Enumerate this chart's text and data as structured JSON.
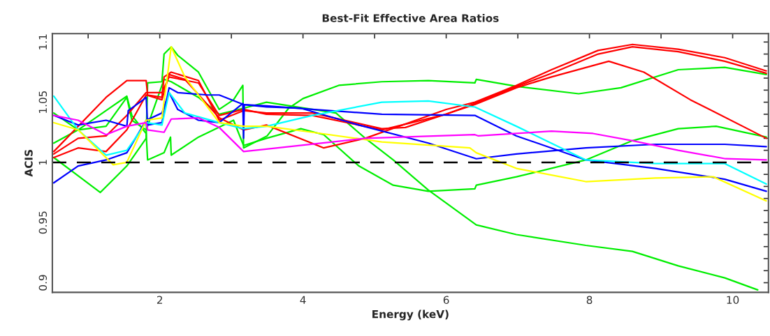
{
  "chart_data": {
    "type": "line",
    "title": "Best-Fit Effective Area Ratios",
    "xlabel": "Energy (keV)",
    "ylabel": "ACIS",
    "xlim": [
      0.5,
      10.5
    ],
    "ylim": [
      0.892,
      1.107
    ],
    "xticks": [
      {
        "value": 1,
        "label": null
      },
      2,
      {
        "value": 3,
        "label": null
      },
      4,
      {
        "value": 5,
        "label": null
      },
      6,
      {
        "value": 7,
        "label": null
      },
      8,
      {
        "value": 9,
        "label": null
      },
      10
    ],
    "yticks": [
      0.9,
      {
        "value": 0.91,
        "label": null
      },
      {
        "value": 0.92,
        "label": null
      },
      {
        "value": 0.93,
        "label": null
      },
      {
        "value": 0.94,
        "label": null
      },
      0.95,
      {
        "value": 0.96,
        "label": null
      },
      {
        "value": 0.97,
        "label": null
      },
      {
        "value": 0.98,
        "label": null
      },
      {
        "value": 0.99,
        "label": null
      },
      1,
      {
        "value": 1.01,
        "label": null
      },
      {
        "value": 1.02,
        "label": null
      },
      {
        "value": 1.03,
        "label": null
      },
      {
        "value": 1.04,
        "label": null
      },
      1.05,
      {
        "value": 1.06,
        "label": null
      },
      {
        "value": 1.07,
        "label": null
      },
      {
        "value": 1.08,
        "label": null
      },
      {
        "value": 1.09,
        "label": null
      },
      1.1
    ],
    "grid": false,
    "marker": "none",
    "line_style": "solid",
    "ref_lines": [
      {
        "axis": "y",
        "value": 1,
        "color": "#000000",
        "line_style": "dashed"
      }
    ],
    "series": [
      {
        "color": "#00ee00",
        "x": [
          0.52,
          1.17,
          1.54,
          1.81,
          1.83,
          2.03,
          2.06,
          2.16,
          2.25,
          2.54,
          2.83,
          3.03,
          3.16,
          3.17,
          3.5,
          3.8,
          4.0,
          4.5,
          5.1,
          5.75,
          6.4,
          6.42,
          7.0,
          7.85,
          8.44,
          9.24,
          9.89,
          10.47
        ],
        "values": [
          1.004,
          0.975,
          0.997,
          1.02,
          1.066,
          1.067,
          1.09,
          1.096,
          1.089,
          1.075,
          1.044,
          1.052,
          1.064,
          1.012,
          1.022,
          1.045,
          1.053,
          1.064,
          1.067,
          1.068,
          1.066,
          1.069,
          1.063,
          1.057,
          1.062,
          1.077,
          1.079,
          1.073
        ]
      },
      {
        "color": "#00ee00",
        "x": [
          0.52,
          0.86,
          1.25,
          1.54,
          1.61,
          1.81,
          1.83,
          2.06,
          2.15,
          2.16,
          2.54,
          3.03,
          3.17,
          3.49,
          3.97,
          4.29,
          4.78,
          5.26,
          5.75,
          6.4,
          6.42,
          6.98,
          7.95,
          8.6,
          9.24,
          9.77,
          10.47
        ],
        "values": [
          1.016,
          1.027,
          1.043,
          1.055,
          1.039,
          1.024,
          1.002,
          1.008,
          1.021,
          1.006,
          1.021,
          1.035,
          1.014,
          1.02,
          1.028,
          1.023,
          0.997,
          0.981,
          0.976,
          0.978,
          0.981,
          0.988,
          1.002,
          1.018,
          1.028,
          1.03,
          1.021
        ]
      },
      {
        "color": "#00ee00",
        "x": [
          0.52,
          0.86,
          1.25,
          1.54,
          1.61,
          1.81,
          2.06,
          2.16,
          2.54,
          2.83,
          3.17,
          3.49,
          4.46,
          4.87,
          5.26,
          5.75,
          6.42,
          6.98,
          7.95,
          8.6,
          9.24,
          9.89,
          10.35
        ],
        "values": [
          1.041,
          1.027,
          1.03,
          1.054,
          1.035,
          1.027,
          1.069,
          1.067,
          1.054,
          1.04,
          1.045,
          1.05,
          1.041,
          1.02,
          1.002,
          0.977,
          0.948,
          0.94,
          0.931,
          0.926,
          0.914,
          0.904,
          0.894
        ]
      },
      {
        "color": "#ff0000",
        "x": [
          0.52,
          1.25,
          1.54,
          1.81,
          1.83,
          2.03,
          2.06,
          2.16,
          2.54,
          2.83,
          3.17,
          3.49,
          4.13,
          5.1,
          5.43,
          6.4,
          6.98,
          7.47,
          8.27,
          8.76,
          9.41,
          10.47
        ],
        "values": [
          1.009,
          1.054,
          1.068,
          1.068,
          1.056,
          1.054,
          1.071,
          1.075,
          1.068,
          1.035,
          1.043,
          1.041,
          1.041,
          1.028,
          1.029,
          1.048,
          1.062,
          1.071,
          1.084,
          1.075,
          1.052,
          1.02
        ]
      },
      {
        "color": "#ff0000",
        "x": [
          0.52,
          0.86,
          1.25,
          1.54,
          1.81,
          2.03,
          2.13,
          2.35,
          2.83,
          3.17,
          3.49,
          4.29,
          4.87,
          6.0,
          6.4,
          6.98,
          7.47,
          8.12,
          8.6,
          9.24,
          9.89,
          10.47
        ],
        "values": [
          1.004,
          1.012,
          1.009,
          1.027,
          1.056,
          1.052,
          1.073,
          1.069,
          1.037,
          1.027,
          1.031,
          1.012,
          1.02,
          1.044,
          1.05,
          1.064,
          1.077,
          1.093,
          1.098,
          1.094,
          1.087,
          1.076
        ]
      },
      {
        "color": "#ff0000",
        "x": [
          0.52,
          0.86,
          1.25,
          1.54,
          1.81,
          2.03,
          2.13,
          2.54,
          2.83,
          3.17,
          3.49,
          4.13,
          5.1,
          6.0,
          6.4,
          6.98,
          7.47,
          8.12,
          8.6,
          9.24,
          9.89,
          10.47
        ],
        "values": [
          1.007,
          1.02,
          1.022,
          1.039,
          1.058,
          1.058,
          1.071,
          1.066,
          1.039,
          1.044,
          1.04,
          1.039,
          1.027,
          1.04,
          1.049,
          1.063,
          1.074,
          1.09,
          1.096,
          1.092,
          1.084,
          1.074
        ]
      },
      {
        "color": "#0000ff",
        "x": [
          0.52,
          0.86,
          1.25,
          1.54,
          1.56,
          1.77,
          1.81,
          1.83,
          2.03,
          2.13,
          2.25,
          2.67,
          2.83,
          3.17,
          3.49,
          4.13,
          5.1,
          6.4,
          6.98,
          7.95,
          8.92,
          9.89,
          10.47
        ],
        "values": [
          1.039,
          1.031,
          1.035,
          1.03,
          1.043,
          1.052,
          1.054,
          1.031,
          1.033,
          1.062,
          1.058,
          1.056,
          1.056,
          1.048,
          1.047,
          1.044,
          1.04,
          1.039,
          1.022,
          1.002,
          0.995,
          0.986,
          0.976
        ]
      },
      {
        "color": "#0000ff",
        "x": [
          0.52,
          0.86,
          1.25,
          1.54,
          1.81,
          2.03,
          2.13,
          2.25,
          2.54,
          2.83,
          3.16,
          3.17,
          3.18,
          3.49,
          3.97,
          4.78,
          5.75,
          6.42,
          6.98,
          7.95,
          8.92,
          9.89,
          10.47
        ],
        "values": [
          0.983,
          0.997,
          1.002,
          1.008,
          1.035,
          1.041,
          1.058,
          1.044,
          1.035,
          1.033,
          1.049,
          1.02,
          1.048,
          1.046,
          1.045,
          1.031,
          1.016,
          1.003,
          1.007,
          1.012,
          1.015,
          1.015,
          1.013
        ]
      },
      {
        "color": "#00ffff",
        "x": [
          0.52,
          0.86,
          1.25,
          1.54,
          1.81,
          2.03,
          2.13,
          2.35,
          2.83,
          3.17,
          3.49,
          4.13,
          5.1,
          5.75,
          6.4,
          6.98,
          7.95,
          8.92,
          9.89,
          10.47
        ],
        "values": [
          1.055,
          1.027,
          1.006,
          1.01,
          1.033,
          1.031,
          1.058,
          1.041,
          1.033,
          1.028,
          1.03,
          1.039,
          1.05,
          1.051,
          1.046,
          1.03,
          1.002,
          0.999,
          0.999,
          0.982
        ]
      },
      {
        "color": "#ffff00",
        "x": [
          0.52,
          0.86,
          1.35,
          1.54,
          1.81,
          2.03,
          2.16,
          2.35,
          2.83,
          3.17,
          3.49,
          4.13,
          5.1,
          6.33,
          6.42,
          6.98,
          7.95,
          8.92,
          9.73,
          10.47
        ],
        "values": [
          1.033,
          1.027,
          0.998,
          1.0,
          1.035,
          1.037,
          1.096,
          1.071,
          1.033,
          1.03,
          1.03,
          1.025,
          1.017,
          1.012,
          1.008,
          0.995,
          0.984,
          0.987,
          0.988,
          0.968
        ]
      },
      {
        "color": "#ff00ff",
        "x": [
          0.52,
          0.86,
          1.25,
          1.54,
          1.81,
          1.83,
          2.06,
          2.16,
          2.54,
          2.83,
          3.17,
          3.49,
          4.87,
          6.4,
          6.45,
          6.98,
          7.47,
          8.05,
          8.6,
          9.24,
          9.9,
          10.47
        ],
        "values": [
          1.039,
          1.035,
          1.023,
          1.03,
          1.033,
          1.027,
          1.025,
          1.036,
          1.037,
          1.029,
          1.009,
          1.011,
          1.02,
          1.023,
          1.022,
          1.024,
          1.026,
          1.024,
          1.018,
          1.01,
          1.003,
          1.002
        ]
      }
    ]
  }
}
